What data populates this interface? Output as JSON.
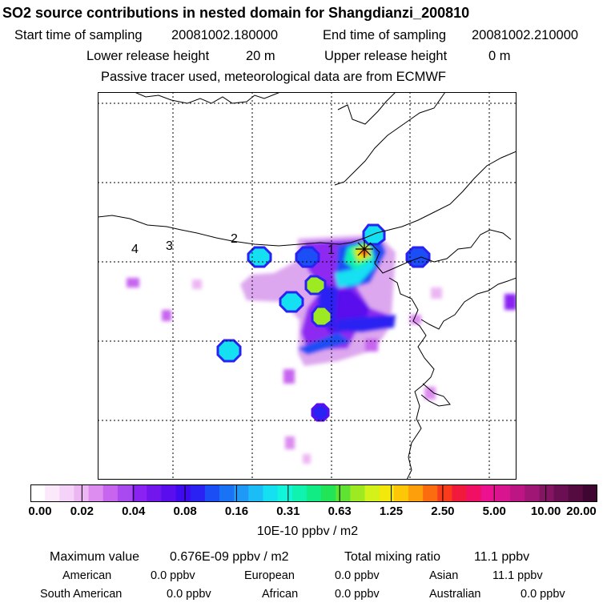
{
  "title": "SO2 source contributions in nested domain for Shangdianzi_200810",
  "sampling": {
    "start_label": "Start time of sampling",
    "start_value": "20081002.180000",
    "end_label": "End time of sampling",
    "end_value": "20081002.210000"
  },
  "release": {
    "lower_label": "Lower release height",
    "lower_value": "20 m",
    "upper_label": "Upper release height",
    "upper_value": "0 m"
  },
  "note": "Passive tracer used, meteorological data are from ECMWF",
  "map": {
    "region_labels": [
      "1",
      "2",
      "3",
      "4"
    ],
    "receptor_marker": "star-marker"
  },
  "colorbar": {
    "colors": [
      "#ffffff",
      "#fbe9fb",
      "#f5d2f7",
      "#ecb6f3",
      "#dd8cef",
      "#c765ee",
      "#a94af0",
      "#8a22f2",
      "#7216ee",
      "#5a0ded",
      "#3e0aee",
      "#2a22f2",
      "#1c4ef5",
      "#1a72f4",
      "#1f98f6",
      "#1cbdf7",
      "#14e0f2",
      "#11f5db",
      "#10f2b0",
      "#12ec84",
      "#21e456",
      "#5ee332",
      "#9eea22",
      "#d3f21a",
      "#f2e80c",
      "#fdc606",
      "#fd9f0a",
      "#fb6c10",
      "#f73b1b",
      "#f21a3c",
      "#f00f65",
      "#ec128f",
      "#d9148f",
      "#bd1583",
      "#a01674",
      "#841563",
      "#6a1052",
      "#550a40",
      "#3e0630"
    ],
    "labels": [
      "0.00",
      "0.02",
      "0.04",
      "0.08",
      "0.16",
      "0.31",
      "0.63",
      "1.25",
      "2.50",
      "5.00",
      "10.00",
      "20.00"
    ],
    "units": "10E-10 ppbv / m2"
  },
  "summary": {
    "max_label": "Maximum value",
    "max_value": "0.676E-09 ppbv / m2",
    "total_label": "Total mixing ratio",
    "total_value": "11.1 ppbv",
    "regions": [
      {
        "name": "American",
        "value": "0.0 ppbv"
      },
      {
        "name": "European",
        "value": "0.0 ppbv"
      },
      {
        "name": "Asian",
        "value": "11.1 ppbv"
      },
      {
        "name": "South American",
        "value": "0.0 ppbv"
      },
      {
        "name": "African",
        "value": "0.0 ppbv"
      },
      {
        "name": "Australian",
        "value": "0.0 ppbv"
      }
    ]
  }
}
